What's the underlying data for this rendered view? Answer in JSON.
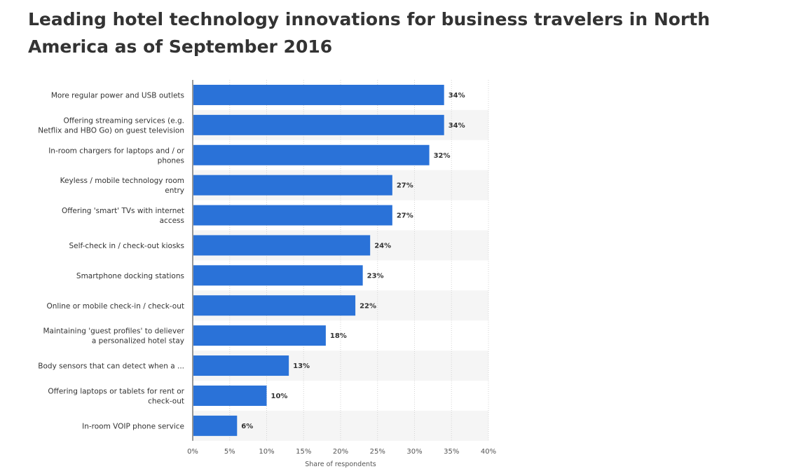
{
  "page": {
    "title": "Leading hotel technology innovations for business travelers in North America as of September 2016"
  },
  "chart_data": {
    "type": "bar",
    "orientation": "horizontal",
    "title": "Leading hotel technology innovations for business travelers in North America as of September 2016",
    "xlabel": "Share of respondents",
    "ylabel": "",
    "xlim": [
      0,
      40
    ],
    "x_ticks": [
      "0%",
      "5%",
      "10%",
      "15%",
      "20%",
      "25%",
      "30%",
      "35%",
      "40%"
    ],
    "grid": true,
    "bar_color": "#2a72d8",
    "categories": [
      [
        "More regular power and USB outlets"
      ],
      [
        "Offering streaming services (e.g.",
        "Netflix and HBO Go) on guest television"
      ],
      [
        "In-room chargers for laptops and / or",
        "phones"
      ],
      [
        "Keyless / mobile technology room",
        "entry"
      ],
      [
        "Offering 'smart' TVs with internet",
        "access"
      ],
      [
        "Self-check in / check-out kiosks"
      ],
      [
        "Smartphone docking stations"
      ],
      [
        "Online or mobile check-in / check-out"
      ],
      [
        "Maintaining 'guest profiles' to deliever",
        "a personalized hotel stay"
      ],
      [
        "Body sensors that can detect when a ..."
      ],
      [
        "Offering laptops or tablets for rent or",
        "check-out"
      ],
      [
        "In-room VOIP phone service"
      ]
    ],
    "values": [
      34,
      34,
      32,
      27,
      27,
      24,
      23,
      22,
      18,
      13,
      10,
      6
    ],
    "value_labels": [
      "34%",
      "34%",
      "32%",
      "27%",
      "27%",
      "24%",
      "23%",
      "22%",
      "18%",
      "13%",
      "10%",
      "6%"
    ]
  }
}
